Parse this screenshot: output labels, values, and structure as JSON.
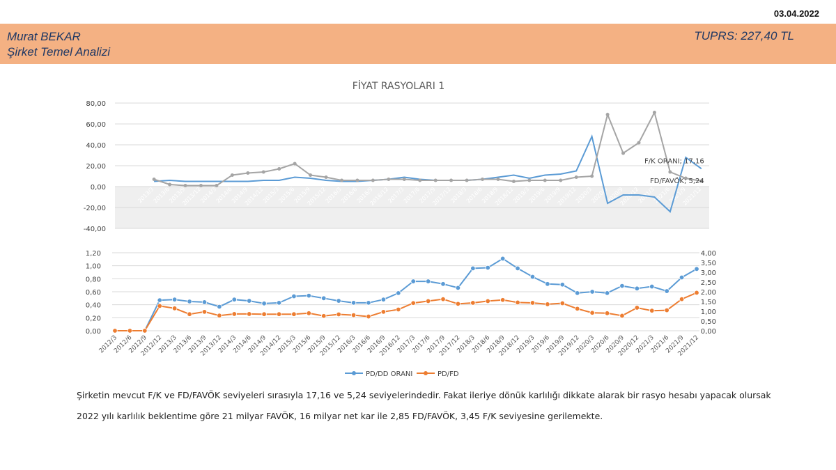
{
  "header": {
    "date": "03.04.2022",
    "author": "Murat BEKAR",
    "subtitle": "Şirket Temel Analizi",
    "ticker": "TUPRS: 227,40 TL"
  },
  "colors": {
    "banner": "#f4b183",
    "blue": "#5b9bd5",
    "gray": "#a5a5a5",
    "orange": "#ed7d31"
  },
  "chart_data": [
    {
      "type": "line",
      "title": "FİYAT RASYOLARI 1",
      "ylim": [
        -40,
        80
      ],
      "yticks": [
        "80,00",
        "60,00",
        "40,00",
        "20,00",
        "0,00",
        "-20,00",
        "-40,00"
      ],
      "categories": [
        "2013/3",
        "2013/6",
        "2013/9",
        "2013/12",
        "2014/3",
        "2014/6",
        "2014/9",
        "2014/12",
        "2015/3",
        "2015/6",
        "2015/9",
        "2015/12",
        "2016/3",
        "2016/6",
        "2016/9",
        "2016/12",
        "2017/3",
        "2017/6",
        "2017/9",
        "2017/12",
        "2018/3",
        "2018/6",
        "2018/9",
        "2018/12",
        "2019/3",
        "2019/6",
        "2019/9",
        "2019/12",
        "2020/3",
        "2020/6",
        "2020/9",
        "2020/12",
        "2021/3",
        "2021/6",
        "2021/9",
        "2021/12"
      ],
      "series": [
        {
          "name": "F/K ORANI",
          "color": "#5b9bd5",
          "values": [
            5,
            6,
            5,
            5,
            5,
            5,
            5,
            6,
            6,
            9,
            8,
            6,
            5,
            5,
            6,
            7,
            9,
            7,
            6,
            6,
            6,
            7,
            9,
            11,
            8,
            11,
            12,
            15,
            48,
            -16,
            -8,
            -8,
            -10,
            -24,
            28,
            17.16
          ]
        },
        {
          "name": "FD/FAVÖK",
          "color": "#a5a5a5",
          "values": [
            7,
            2,
            1,
            1,
            1,
            11,
            13,
            14,
            17,
            22,
            11,
            9,
            6,
            6,
            6,
            7,
            7,
            6,
            6,
            6,
            6,
            7,
            7,
            5,
            6,
            6,
            6,
            9,
            10,
            69,
            32,
            42,
            71,
            14,
            8,
            5.24
          ]
        }
      ],
      "end_labels": [
        "F/K ORANI; 17,16",
        "FD/FAVÖK; 5,24"
      ]
    },
    {
      "type": "line",
      "ylim_left": [
        0,
        1.2
      ],
      "ylim_right": [
        0,
        4
      ],
      "yticks_left": [
        "1,20",
        "1,00",
        "0,80",
        "0,60",
        "0,40",
        "0,20",
        "0,00"
      ],
      "yticks_right": [
        "4,00",
        "3,50",
        "3,00",
        "2,50",
        "2,00",
        "1,50",
        "1,00",
        "0,50",
        "0,00"
      ],
      "categories": [
        "2012/3",
        "2012/6",
        "2012/9",
        "2012/12",
        "2013/3",
        "2013/6",
        "2013/9",
        "2013/12",
        "2014/3",
        "2014/6",
        "2014/9",
        "2014/12",
        "2015/3",
        "2015/6",
        "2015/9",
        "2015/12",
        "2016/3",
        "2016/6",
        "2016/9",
        "2016/12",
        "2017/3",
        "2017/6",
        "2017/9",
        "2017/12",
        "2018/3",
        "2018/6",
        "2018/9",
        "2018/12",
        "2019/3",
        "2019/6",
        "2019/9",
        "2019/12",
        "2020/3",
        "2020/6",
        "2020/9",
        "2020/12",
        "2021/3",
        "2021/6",
        "2021/9",
        "2021/12"
      ],
      "series": [
        {
          "name": "PD/DD ORANI",
          "axis": "left",
          "color": "#5b9bd5",
          "values": [
            0,
            0,
            0,
            0.47,
            0.48,
            0.45,
            0.44,
            0.37,
            0.48,
            0.46,
            0.42,
            0.43,
            0.53,
            0.54,
            0.5,
            0.46,
            0.43,
            0.43,
            0.48,
            0.58,
            0.76,
            0.76,
            0.72,
            0.66,
            0.96,
            0.97,
            1.11,
            0.96,
            0.83,
            0.72,
            0.71,
            0.58,
            0.6,
            0.58,
            0.69,
            0.65,
            0.68,
            0.61,
            0.82,
            0.95
          ]
        },
        {
          "name": "PD/FD",
          "axis": "right",
          "color": "#ed7d31",
          "values": [
            0,
            0,
            0,
            1.27,
            1.15,
            0.85,
            0.97,
            0.78,
            0.86,
            0.86,
            0.85,
            0.85,
            0.85,
            0.9,
            0.76,
            0.84,
            0.8,
            0.73,
            0.97,
            1.09,
            1.42,
            1.52,
            1.62,
            1.38,
            1.43,
            1.52,
            1.58,
            1.45,
            1.43,
            1.36,
            1.41,
            1.13,
            0.92,
            0.9,
            0.77,
            1.18,
            1.03,
            1.05,
            1.62,
            1.95
          ]
        }
      ]
    }
  ],
  "text": {
    "line1": "Şirketin mevcut F/K ve FD/FAVÖK seviyeleri sırasıyla 17,16 ve 5,24 seviyelerindedir. Fakat ileriye dönük karlılığı dikkate alarak bir rasyo hesabı yapacak olursak",
    "line2": "2022 yılı karlılık beklentime göre 21 milyar FAVÖK, 16 milyar net kar ile 2,85 FD/FAVÖK, 3,45 F/K seviyesine gerilemekte."
  }
}
